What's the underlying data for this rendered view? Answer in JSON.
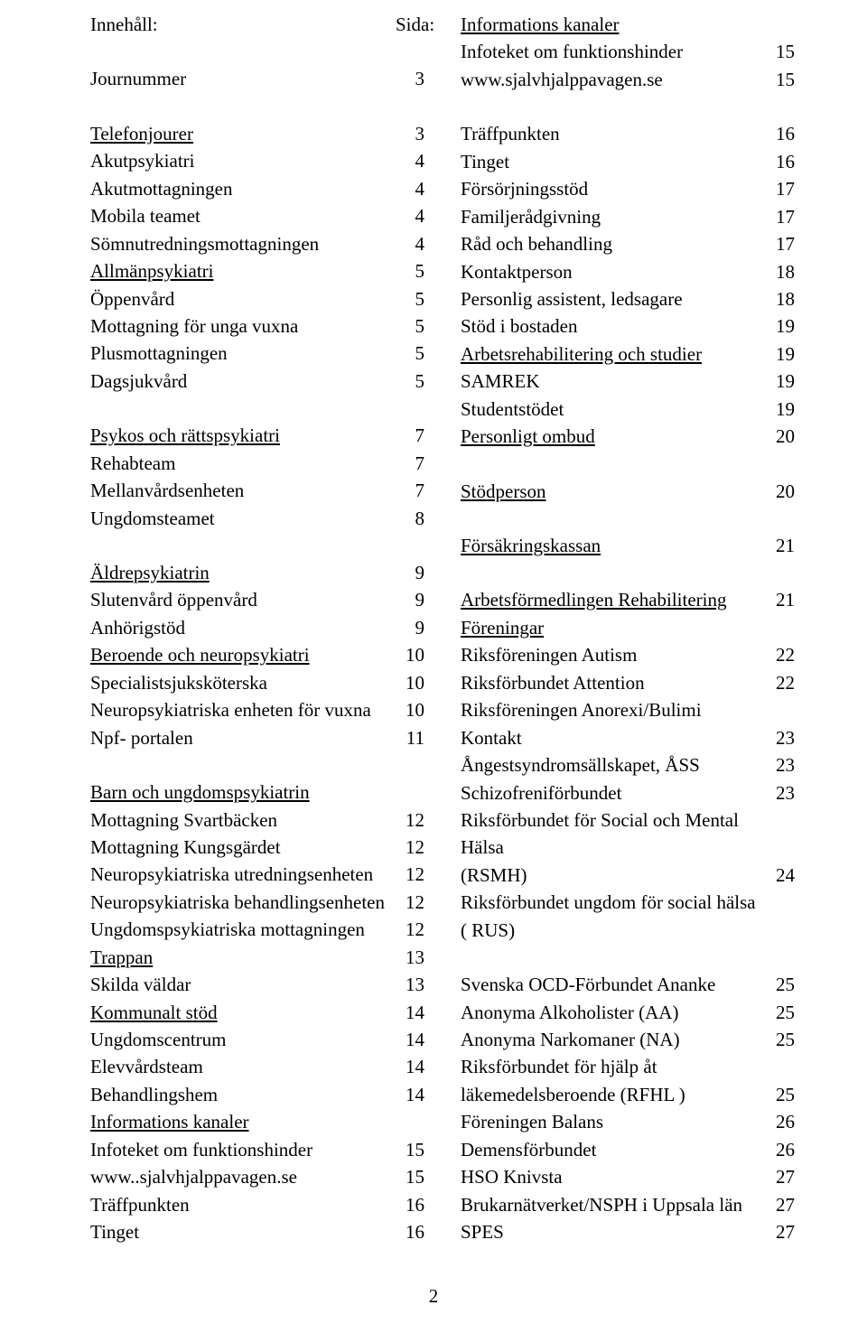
{
  "left": [
    {
      "label": "Innehåll:",
      "num": "Sida:"
    },
    {
      "spacer": true
    },
    {
      "label": "Journummer",
      "num": "3"
    },
    {
      "spacer": true
    },
    {
      "label": "Telefonjourer",
      "num": "3",
      "u": true
    },
    {
      "label": "Akutpsykiatri",
      "num": "4"
    },
    {
      "label": "Akutmottagningen",
      "num": "4"
    },
    {
      "label": "Mobila teamet",
      "num": "4"
    },
    {
      "label": "Sömnutredningsmottagningen",
      "num": "4"
    },
    {
      "label": "Allmänpsykiatri",
      "num": "5",
      "u": true
    },
    {
      "label": "Öppenvård",
      "num": "5"
    },
    {
      "label": "Mottagning för unga vuxna",
      "num": "5"
    },
    {
      "label": "Plusmottagningen",
      "num": "5"
    },
    {
      "label": "Dagsjukvård",
      "num": "5"
    },
    {
      "spacer": true
    },
    {
      "label": "Psykos och rättspsykiatri",
      "num": "7",
      "u": true
    },
    {
      "label": "Rehabteam",
      "num": "7"
    },
    {
      "label": "Mellanvårdsenheten",
      "num": "7"
    },
    {
      "label": "Ungdomsteamet",
      "num": "8"
    },
    {
      "spacer": true
    },
    {
      "label": "Äldrepsykiatrin",
      "num": "9",
      "u": true
    },
    {
      "label": "Slutenvård öppenvård",
      "num": "9"
    },
    {
      "label": "Anhörigstöd",
      "num": "9"
    },
    {
      "label": "Beroende och neuropsykiatri",
      "num": "10",
      "u": true
    },
    {
      "label": "Specialistsjuksköterska",
      "num": "10"
    },
    {
      "label": "Neuropsykiatriska enheten för vuxna",
      "num": "10"
    },
    {
      "label": "Npf- portalen",
      "num": "11"
    },
    {
      "spacer": true
    },
    {
      "label": "Barn och ungdomspsykiatrin",
      "num": "",
      "u": true
    },
    {
      "label": "Mottagning Svartbäcken",
      "num": "12"
    },
    {
      "label": "Mottagning Kungsgärdet",
      "num": "12"
    },
    {
      "label": "Neuropsykiatriska utredningsenheten",
      "num": "12"
    },
    {
      "label": "Neuropsykiatriska behandlingsenheten",
      "num": "12"
    },
    {
      "label": "Ungdomspsykiatriska mottagningen",
      "num": "12"
    },
    {
      "label": "Trappan",
      "num": "13",
      "u": true
    },
    {
      "label": "Skilda väldar",
      "num": "13"
    },
    {
      "label": "Kommunalt stöd",
      "num": "14",
      "u": true
    },
    {
      "label": "Ungdomscentrum",
      "num": "14"
    },
    {
      "label": "Elevvårdsteam",
      "num": "14"
    },
    {
      "label": "Behandlingshem",
      "num": "14"
    },
    {
      "label": "Informations kanaler",
      "num": "",
      "u": true
    },
    {
      "label": "Infoteket om funktionshinder",
      "num": "15"
    },
    {
      "label": "www..sjalvhjalppavagen.se",
      "num": "15"
    },
    {
      "label": "Träffpunkten",
      "num": "16"
    },
    {
      "label": "Tinget",
      "num": "16"
    }
  ],
  "right": [
    {
      "label": "Informations kanaler",
      "num": "",
      "u": true
    },
    {
      "label": "Infoteket om funktionshinder",
      "num": "15"
    },
    {
      "label": "www.sjalvhjalppavagen.se",
      "num": "15"
    },
    {
      "spacer": true
    },
    {
      "label": "Träffpunkten",
      "num": "16"
    },
    {
      "label": "Tinget",
      "num": "16"
    },
    {
      "label": "Försörjningsstöd",
      "num": "17"
    },
    {
      "label": "Familjerådgivning",
      "num": "17"
    },
    {
      "label": "Råd och behandling",
      "num": "17"
    },
    {
      "label": "Kontaktperson",
      "num": "18"
    },
    {
      "label": "Personlig assistent, ledsagare",
      "num": "18"
    },
    {
      "label": "Stöd i bostaden",
      "num": "19"
    },
    {
      "label": "Arbetsrehabilitering och studier",
      "num": "19",
      "u": true
    },
    {
      "label": "SAMREK",
      "num": "19"
    },
    {
      "label": "Studentstödet",
      "num": "19"
    },
    {
      "label": "Personligt ombud",
      "num": "20",
      "u": true
    },
    {
      "spacer": true
    },
    {
      "label": "Stödperson",
      "num": "20",
      "u": true
    },
    {
      "spacer": true
    },
    {
      "label": "Försäkringskassan",
      "num": "21",
      "u": true
    },
    {
      "spacer": true
    },
    {
      "label": "Arbetsförmedlingen Rehabilitering",
      "num": "21",
      "u": true
    },
    {
      "label": "Föreningar",
      "num": "",
      "u": true
    },
    {
      "label": "Riksföreningen Autism",
      "num": "22"
    },
    {
      "label": "Riksförbundet Attention",
      "num": "22"
    },
    {
      "label": "Riksföreningen Anorexi/Bulimi",
      "num": ""
    },
    {
      "label": "Kontakt",
      "num": "23"
    },
    {
      "label": "Ångestsyndromsällskapet, ÅSS",
      "num": "23"
    },
    {
      "label": "Schizofreniförbundet",
      "num": "23"
    },
    {
      "label": "Riksförbundet för Social och Mental Hälsa",
      "num": ""
    },
    {
      "label": "(RSMH)",
      "num": "24"
    },
    {
      "label": "Riksförbundet ungdom för social hälsa",
      "num": ""
    },
    {
      "label": "( RUS)",
      "num": ""
    },
    {
      "spacer": true
    },
    {
      "label": "Svenska OCD-Förbundet Ananke",
      "num": "25"
    },
    {
      "label": "Anonyma Alkoholister (AA)",
      "num": "25"
    },
    {
      "label": "Anonyma Narkomaner (NA)",
      "num": "25"
    },
    {
      "label": "Riksförbundet för hjälp åt",
      "num": ""
    },
    {
      "label": "läkemedelsberoende (RFHL )",
      "num": "25"
    },
    {
      "label": "Föreningen Balans",
      "num": "26"
    },
    {
      "label": "Demensförbundet",
      "num": "26"
    },
    {
      "label": "HSO Knivsta",
      "num": "27"
    },
    {
      "label": "Brukarnätverket/NSPH i Uppsala län",
      "num": "27"
    },
    {
      "label": "SPES",
      "num": "27"
    }
  ],
  "pageNumber": "2"
}
